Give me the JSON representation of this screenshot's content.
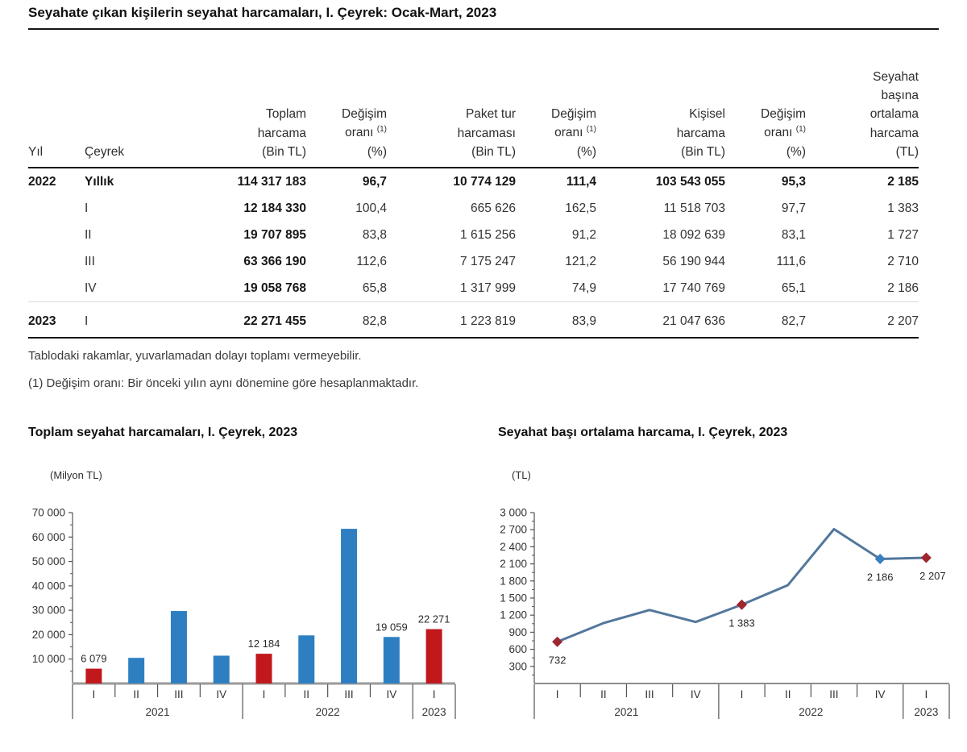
{
  "page": {
    "title": "Seyahate çıkan kişilerin seyahat harcamaları, I. Çeyrek: Ocak-Mart, 2023"
  },
  "table": {
    "h_yil": "Yıl",
    "h_ceyrek": "Çeyrek",
    "h_toplam": "Toplam\nharcama\n(Bin TL)",
    "h_degisim_l1": "Değişim",
    "h_degisim_l2": "oranı ",
    "h_degisim_sup": "(1)",
    "h_degisim_l3": "(%)",
    "h_paket": "Paket tur\nharcaması\n(Bin TL)",
    "h_kisisel": "Kişisel\nharcama\n(Bin TL)",
    "h_seyahat": "Seyahat\nbaşına\nortalama\nharcama\n(TL)",
    "rows": [
      {
        "year": "2022",
        "quarter": "Yıllık",
        "bold_row": true,
        "cells": [
          "114 317 183",
          "96,7",
          "10 774 129",
          "111,4",
          "103 543 055",
          "95,3",
          "2 185"
        ]
      },
      {
        "year": "",
        "quarter": "I",
        "cells": [
          "12 184 330",
          "100,4",
          "665 626",
          "162,5",
          "11 518 703",
          "97,7",
          "1 383"
        ]
      },
      {
        "year": "",
        "quarter": "II",
        "cells": [
          "19 707 895",
          "83,8",
          "1 615 256",
          "91,2",
          "18 092 639",
          "83,1",
          "1 727"
        ]
      },
      {
        "year": "",
        "quarter": "III",
        "cells": [
          "63 366 190",
          "112,6",
          "7 175 247",
          "121,2",
          "56 190 944",
          "111,6",
          "2 710"
        ]
      },
      {
        "year": "",
        "quarter": "IV",
        "cells": [
          "19 058 768",
          "65,8",
          "1 317 999",
          "74,9",
          "17 740 769",
          "65,1",
          "2 186"
        ]
      },
      {
        "year": "2023",
        "quarter": "I",
        "sep": true,
        "cells": [
          "22 271 455",
          "82,8",
          "1 223 819",
          "83,9",
          "21 047 636",
          "82,7",
          "2 207"
        ]
      }
    ],
    "footnote1": "Tablodaki rakamlar, yuvarlamadan dolayı toplamı vermeyebilir.",
    "footnote2": "(1) Değişim oranı: Bir önceki yılın aynı dönemine göre hesaplanmaktadır."
  },
  "chart_data": [
    {
      "type": "bar",
      "title": "Toplam seyahat harcamaları, I. Çeyrek, 2023",
      "ylabel": "(Milyon TL)",
      "categories": [
        "I",
        "II",
        "III",
        "IV",
        "I",
        "II",
        "III",
        "IV",
        "I"
      ],
      "year_groups": [
        {
          "label": "2021",
          "span": 4
        },
        {
          "label": "2022",
          "span": 4
        },
        {
          "label": "2023",
          "span": 1
        }
      ],
      "values": [
        6079,
        10500,
        29700,
        11400,
        12184,
        19708,
        63366,
        19059,
        22271
      ],
      "colors": [
        "#c0181c",
        "#2d7fc1",
        "#2d7fc1",
        "#2d7fc1",
        "#c0181c",
        "#2d7fc1",
        "#2d7fc1",
        "#2d7fc1",
        "#c0181c"
      ],
      "data_labels": [
        "6 079",
        "",
        "",
        "",
        "12 184",
        "",
        "",
        "19 059",
        "22 271"
      ],
      "ylim": [
        0,
        70000
      ],
      "ytick_step": 10000,
      "yticks": [
        {
          "v": 10000,
          "label": "10 000"
        },
        {
          "v": 20000,
          "label": "20 000"
        },
        {
          "v": 30000,
          "label": "30 000"
        },
        {
          "v": 40000,
          "label": "40 000"
        },
        {
          "v": 50000,
          "label": "50 000"
        },
        {
          "v": 60000,
          "label": "60 000"
        },
        {
          "v": 70000,
          "label": "70 000"
        }
      ],
      "grid": false,
      "legend": "none"
    },
    {
      "type": "line",
      "title": "Seyahat başı ortalama harcama, I. Çeyrek, 2023",
      "ylabel": "(TL)",
      "categories": [
        "I",
        "II",
        "III",
        "IV",
        "I",
        "II",
        "III",
        "IV",
        "I"
      ],
      "year_groups": [
        {
          "label": "2021",
          "span": 4
        },
        {
          "label": "2022",
          "span": 4
        },
        {
          "label": "2023",
          "span": 1
        }
      ],
      "values": [
        732,
        1060,
        1290,
        1080,
        1383,
        1727,
        2710,
        2186,
        2207
      ],
      "line_color": "#53779c",
      "markers": [
        "#9e2630",
        "",
        "",
        "",
        "#9e2630",
        "",
        "",
        "#3a7fc2",
        "#9e2630"
      ],
      "data_labels": [
        "732",
        "",
        "",
        "",
        "1 383",
        "",
        "",
        "2 186",
        "2 207"
      ],
      "ylim": [
        0,
        3000
      ],
      "ytick_step": 300,
      "yticks": [
        {
          "v": 300,
          "label": "300"
        },
        {
          "v": 600,
          "label": "600"
        },
        {
          "v": 900,
          "label": "900"
        },
        {
          "v": 1200,
          "label": "1 200"
        },
        {
          "v": 1500,
          "label": "1 500"
        },
        {
          "v": 1800,
          "label": "1 800"
        },
        {
          "v": 2100,
          "label": "2 100"
        },
        {
          "v": 2400,
          "label": "2 400"
        },
        {
          "v": 2700,
          "label": "2 700"
        },
        {
          "v": 3000,
          "label": "3 000"
        }
      ],
      "grid": false,
      "legend": "none"
    }
  ]
}
